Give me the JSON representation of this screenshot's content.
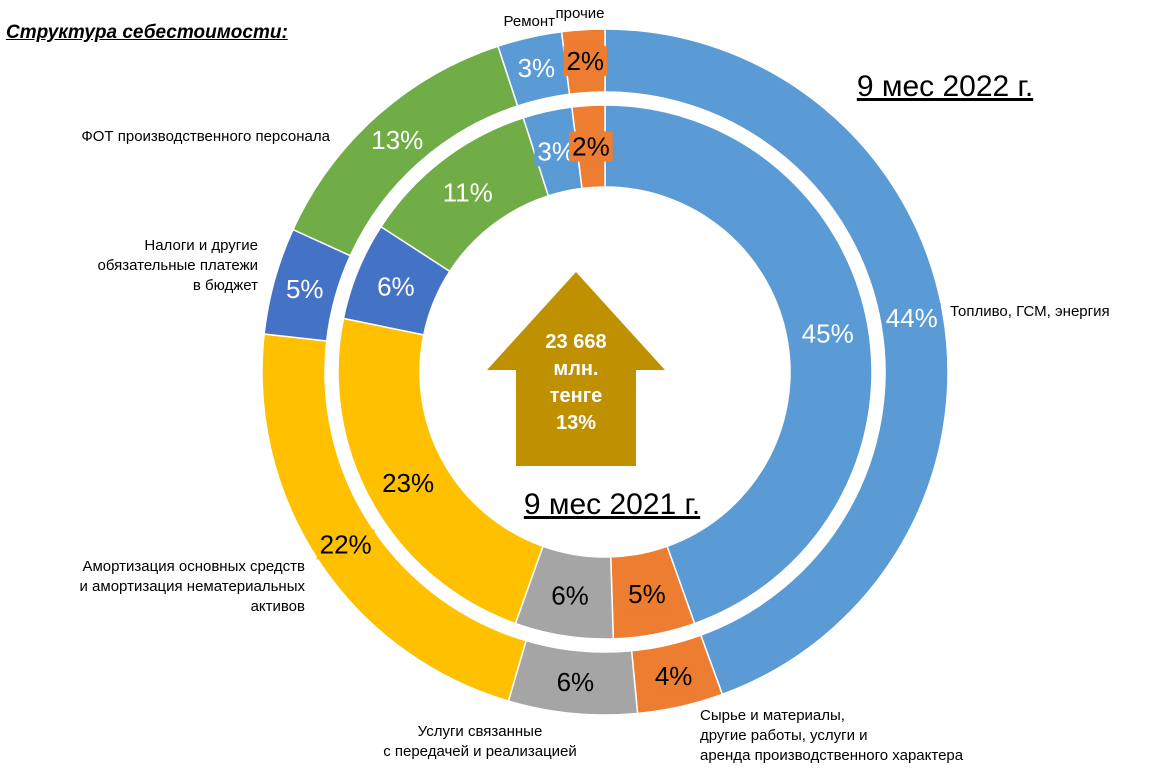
{
  "chart_data": {
    "type": "donut",
    "title": "Структура себестоимости:",
    "categories": [
      "Топливо, ГСМ, энергия",
      "Сырье и материалы,\nдругие работы, услуги и\nаренда производственного характера",
      "Услуги связанные\nс передачей и реализацией",
      "Амортизация основных средств\nи амортизация нематериальных\nактивов",
      "Налоги и другие\nобязательные платежи\nв бюджет",
      "ФОТ производственного персонала",
      "Ремонт",
      "прочие"
    ],
    "colors": [
      "#5b9bd5",
      "#ed7d31",
      "#a5a5a5",
      "#ffc000",
      "#4472c4",
      "#70ad47",
      "#5b9bd5",
      "#ed7d31"
    ],
    "label_colors": [
      "#ffffff",
      "#000000",
      "#000000",
      "#000000",
      "#ffffff",
      "#ffffff",
      "#ffffff",
      "#000000"
    ],
    "series": [
      {
        "name": "9 мес 2022 г.",
        "values": [
          44,
          4,
          6,
          22,
          5,
          13,
          3,
          2
        ],
        "value_labels": [
          "44%",
          "4%",
          "6%",
          "22%",
          "5%",
          "13%",
          "3%",
          "2%"
        ]
      },
      {
        "name": "9 мес 2021 г.",
        "values": [
          45,
          5,
          6,
          23,
          6,
          11,
          3,
          2
        ],
        "value_labels": [
          "45%",
          "5%",
          "6%",
          "23%",
          "6%",
          "11%",
          "3%",
          "2%"
        ]
      }
    ],
    "center_label": [
      "23 668",
      "млн.",
      "тенге",
      "13%"
    ]
  }
}
